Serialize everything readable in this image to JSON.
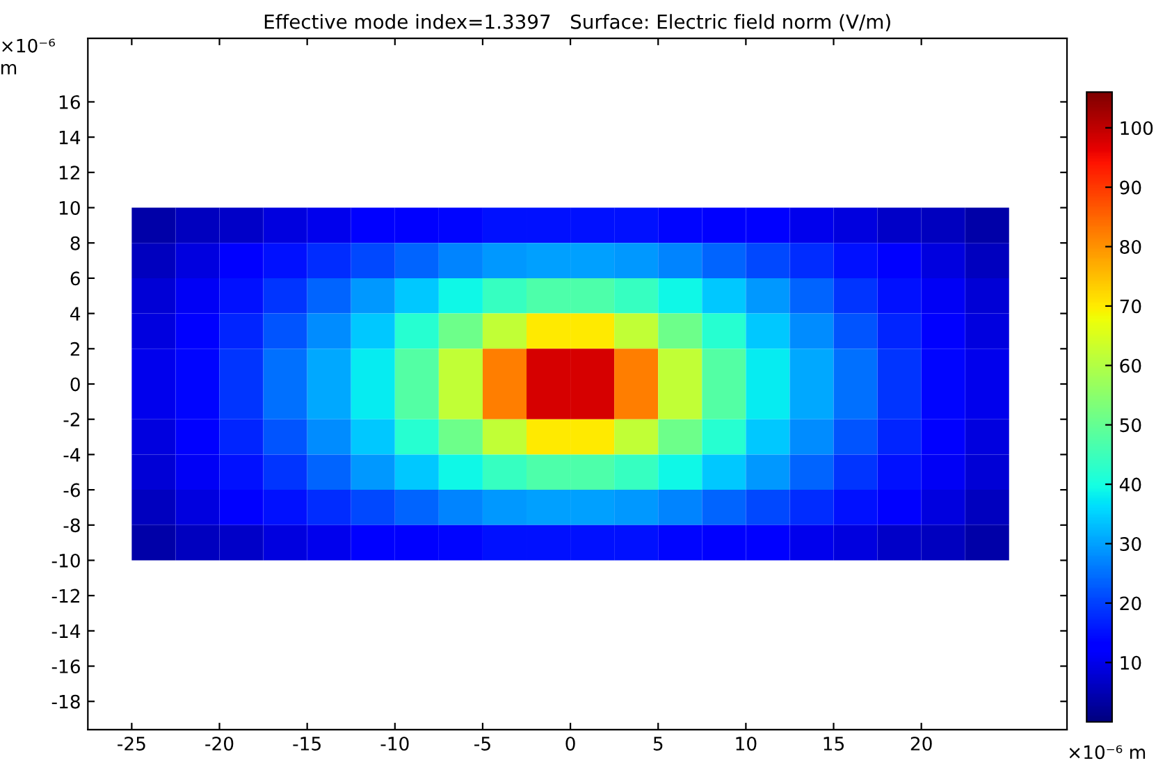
{
  "chart_data": {
    "type": "heatmap",
    "title": "Effective mode index=1.3397   Surface: Electric field norm (V/m)",
    "xlabel": "×10⁻⁶ m",
    "ylabel": "×10⁻⁶\nm",
    "x": [
      -23.75,
      -21.25,
      -18.75,
      -16.25,
      -13.75,
      -11.25,
      -8.75,
      -6.25,
      -3.75,
      -1.25,
      1.25,
      3.75,
      6.25,
      8.75,
      11.25,
      13.75,
      16.25,
      18.75,
      21.25,
      23.75
    ],
    "y": [
      9,
      7,
      5,
      3,
      1,
      -1,
      -3,
      -5,
      -7,
      -9
    ],
    "cells": [
      [
        4,
        6,
        7,
        9,
        10,
        12,
        13,
        14,
        15,
        15,
        15,
        15,
        14,
        13,
        12,
        10,
        9,
        7,
        6,
        4
      ],
      [
        6,
        9,
        12,
        15,
        18,
        21,
        24,
        27,
        29,
        30,
        30,
        29,
        27,
        24,
        21,
        18,
        15,
        12,
        9,
        6
      ],
      [
        8,
        11,
        15,
        19,
        24,
        29,
        34,
        39,
        44,
        47,
        47,
        44,
        39,
        34,
        29,
        24,
        19,
        15,
        11,
        8
      ],
      [
        9,
        13,
        17,
        22,
        28,
        34,
        42,
        51,
        62,
        70,
        70,
        62,
        51,
        42,
        34,
        28,
        22,
        17,
        13,
        9
      ],
      [
        10,
        14,
        19,
        25,
        31,
        38,
        48,
        62,
        82,
        98,
        98,
        82,
        62,
        48,
        38,
        31,
        25,
        19,
        14,
        10
      ],
      [
        10,
        14,
        19,
        25,
        31,
        38,
        48,
        62,
        82,
        98,
        98,
        82,
        62,
        48,
        38,
        31,
        25,
        19,
        14,
        10
      ],
      [
        9,
        13,
        17,
        22,
        28,
        34,
        42,
        51,
        62,
        70,
        70,
        62,
        51,
        42,
        34,
        28,
        22,
        17,
        13,
        9
      ],
      [
        8,
        11,
        15,
        19,
        24,
        29,
        34,
        39,
        44,
        47,
        47,
        44,
        39,
        34,
        29,
        24,
        19,
        15,
        11,
        8
      ],
      [
        6,
        9,
        12,
        15,
        18,
        21,
        24,
        27,
        29,
        30,
        30,
        29,
        27,
        24,
        21,
        18,
        15,
        12,
        9,
        6
      ],
      [
        4,
        6,
        7,
        9,
        10,
        12,
        13,
        14,
        15,
        15,
        15,
        15,
        14,
        13,
        12,
        10,
        9,
        7,
        6,
        4
      ]
    ],
    "clim": [
      0,
      106
    ],
    "cticks": [
      10,
      20,
      30,
      40,
      50,
      60,
      70,
      80,
      90,
      100
    ],
    "xlim": [
      -27.5,
      28.3
    ],
    "ylim": [
      -19.6,
      19.6
    ],
    "xticks": [
      -25,
      -20,
      -15,
      -10,
      -5,
      0,
      5,
      10,
      15,
      20
    ],
    "yticks": [
      -18,
      -16,
      -14,
      -12,
      -10,
      -8,
      -6,
      -4,
      -2,
      0,
      2,
      4,
      6,
      8,
      10,
      12,
      14,
      16
    ],
    "grid": false
  }
}
